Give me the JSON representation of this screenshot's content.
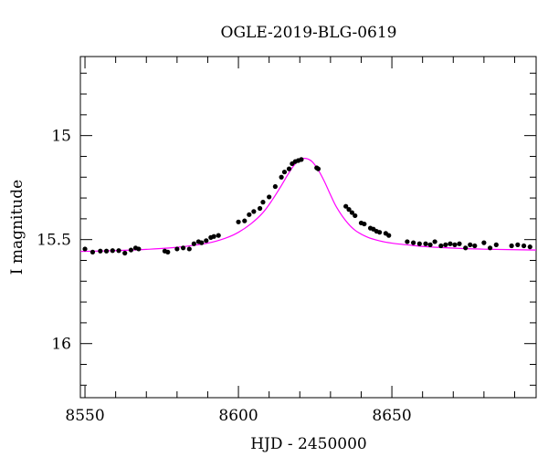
{
  "chart_data": {
    "type": "scatter",
    "title": "OGLE-2019-BLG-0619",
    "xlabel": "HJD - 2450000",
    "ylabel": "I magnitude",
    "xlim": [
      8548.5,
      8697.0
    ],
    "ylim": [
      16.26,
      14.62
    ],
    "y_inverted": true,
    "x_ticks": [
      "8550",
      "8600",
      "8650"
    ],
    "y_ticks": [
      "15",
      "15.5",
      "16"
    ],
    "x_tick_values": [
      8550,
      8600,
      8650
    ],
    "y_tick_values": [
      15.0,
      15.5,
      16.0
    ],
    "x_minor_step": 10,
    "y_minor_step": 0.1,
    "grid": false,
    "colors": {
      "points": "#000000",
      "model": "#ff00ff",
      "frame": "#000000"
    },
    "model_curve": {
      "name": "",
      "x": [
        8548.5,
        8560,
        8570,
        8580,
        8590,
        8596,
        8600,
        8604,
        8608,
        8611,
        8614,
        8616,
        8618,
        8620,
        8622,
        8624,
        8626,
        8628,
        8630,
        8632,
        8635,
        8638,
        8642,
        8646,
        8650,
        8656,
        8662,
        8670,
        8680,
        8697
      ],
      "y": [
        15.557,
        15.553,
        15.547,
        15.537,
        15.517,
        15.492,
        15.465,
        15.425,
        15.37,
        15.31,
        15.24,
        15.19,
        15.145,
        15.115,
        15.11,
        15.125,
        15.165,
        15.22,
        15.285,
        15.345,
        15.41,
        15.455,
        15.488,
        15.506,
        15.517,
        15.527,
        15.535,
        15.541,
        15.546,
        15.55
      ]
    },
    "series": [
      {
        "name": "",
        "x": [
          8550.0,
          8552.5,
          8555.0,
          8557.0,
          8559.0,
          8561.0,
          8563.0,
          8565.0,
          8566.5,
          8567.5,
          8576.0,
          8577.0,
          8580.0,
          8582.0,
          8584.0,
          8585.5,
          8587.0,
          8588.0,
          8589.5,
          8591.0,
          8592.0,
          8593.5,
          8600.0,
          8602.0,
          8603.5,
          8605.0,
          8607.0,
          8608.0,
          8610.0,
          8612.0,
          8614.0,
          8615.0,
          8616.5,
          8617.5,
          8618.5,
          8619.5,
          8620.5,
          8625.5,
          8626.0,
          8635.0,
          8636.0,
          8637.0,
          8638.0,
          8640.0,
          8641.0,
          8643.0,
          8644.0,
          8645.0,
          8646.0,
          8648.0,
          8649.0,
          8655.0,
          8657.0,
          8659.0,
          8661.0,
          8662.5,
          8664.0,
          8666.0,
          8667.5,
          8669.0,
          8670.5,
          8672.0,
          8674.0,
          8675.5,
          8677.0,
          8680.0,
          8682.0,
          8684.0,
          8689.0,
          8691.0,
          8693.0,
          8695.0
        ],
        "y": [
          15.545,
          15.56,
          15.555,
          15.555,
          15.553,
          15.553,
          15.565,
          15.55,
          15.54,
          15.545,
          15.555,
          15.56,
          15.545,
          15.54,
          15.545,
          15.52,
          15.51,
          15.515,
          15.505,
          15.49,
          15.485,
          15.48,
          15.415,
          15.41,
          15.38,
          15.365,
          15.35,
          15.32,
          15.295,
          15.245,
          15.2,
          15.175,
          15.16,
          15.135,
          15.125,
          15.12,
          15.115,
          15.155,
          15.16,
          15.34,
          15.355,
          15.37,
          15.385,
          15.42,
          15.425,
          15.445,
          15.45,
          15.46,
          15.465,
          15.47,
          15.48,
          15.51,
          15.515,
          15.52,
          15.52,
          15.525,
          15.51,
          15.53,
          15.525,
          15.52,
          15.525,
          15.52,
          15.54,
          15.525,
          15.53,
          15.515,
          15.54,
          15.525,
          15.53,
          15.525,
          15.53,
          15.535
        ]
      }
    ]
  }
}
